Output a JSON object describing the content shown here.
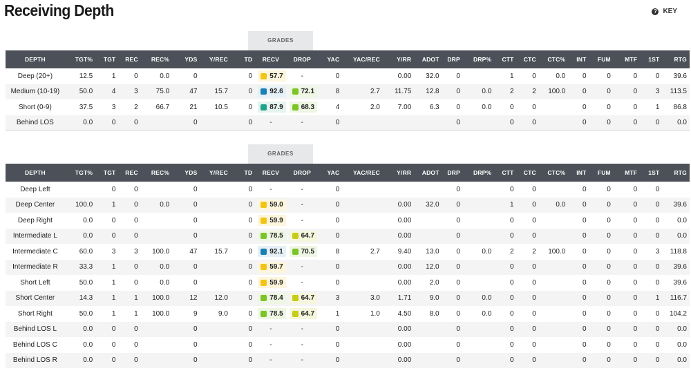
{
  "header": {
    "title": "Receiving Depth",
    "key_label": "KEY",
    "key_icon": "?"
  },
  "grades_label": "GRADES",
  "colors": {
    "elite": "#1a7fb3",
    "high": "#1fa38c",
    "good": "#7cc427",
    "avg": "#c7cc16",
    "low": "#f2c414",
    "bg_elite": "#e6f1f7",
    "bg_high": "#e5f4ef",
    "bg_good": "#eef7e3",
    "bg_avg": "#f5f6dd",
    "bg_low": "#fdf6dc"
  },
  "columns": [
    "DEPTH",
    "TGT%",
    "TGT",
    "REC",
    "REC%",
    "YDS",
    "Y/REC",
    "TD",
    "RECV",
    "DROP",
    "YAC",
    "YAC/REC",
    "Y/RR",
    "ADOT",
    "DRP",
    "DRP%",
    "CTT",
    "CTC",
    "CTC%",
    "INT",
    "FUM",
    "MTF",
    "1ST",
    "RTG"
  ],
  "table1": {
    "rows": [
      {
        "depth": "Deep (20+)",
        "tgt_pct": "12.5",
        "tgt": "1",
        "rec": "0",
        "rec_pct": "0.0",
        "yds": "0",
        "y_rec": "",
        "td": "0",
        "recv": {
          "v": "57.7",
          "tier": "low"
        },
        "drop": {
          "v": "-",
          "tier": ""
        },
        "yac": "0",
        "yac_rec": "",
        "y_rr": "0.00",
        "adot": "32.0",
        "drp": "0",
        "drp_pct": "",
        "ctt": "1",
        "ctc": "0",
        "ctc_pct": "0.0",
        "int": "0",
        "fum": "0",
        "mtf": "0",
        "first": "0",
        "rtg": "39.6"
      },
      {
        "depth": "Medium (10-19)",
        "tgt_pct": "50.0",
        "tgt": "4",
        "rec": "3",
        "rec_pct": "75.0",
        "yds": "47",
        "y_rec": "15.7",
        "td": "0",
        "recv": {
          "v": "92.6",
          "tier": "elite"
        },
        "drop": {
          "v": "72.1",
          "tier": "good"
        },
        "yac": "8",
        "yac_rec": "2.7",
        "y_rr": "11.75",
        "adot": "12.8",
        "drp": "0",
        "drp_pct": "0.0",
        "ctt": "2",
        "ctc": "2",
        "ctc_pct": "100.0",
        "int": "0",
        "fum": "0",
        "mtf": "0",
        "first": "3",
        "rtg": "113.5"
      },
      {
        "depth": "Short (0-9)",
        "tgt_pct": "37.5",
        "tgt": "3",
        "rec": "2",
        "rec_pct": "66.7",
        "yds": "21",
        "y_rec": "10.5",
        "td": "0",
        "recv": {
          "v": "87.9",
          "tier": "high"
        },
        "drop": {
          "v": "68.3",
          "tier": "good"
        },
        "yac": "4",
        "yac_rec": "2.0",
        "y_rr": "7.00",
        "adot": "6.3",
        "drp": "0",
        "drp_pct": "0.0",
        "ctt": "0",
        "ctc": "0",
        "ctc_pct": "",
        "int": "0",
        "fum": "0",
        "mtf": "0",
        "first": "1",
        "rtg": "86.8"
      },
      {
        "depth": "Behind LOS",
        "tgt_pct": "0.0",
        "tgt": "0",
        "rec": "0",
        "rec_pct": "",
        "yds": "0",
        "y_rec": "",
        "td": "0",
        "recv": {
          "v": "-",
          "tier": ""
        },
        "drop": {
          "v": "-",
          "tier": ""
        },
        "yac": "0",
        "yac_rec": "",
        "y_rr": "",
        "adot": "",
        "drp": "0",
        "drp_pct": "",
        "ctt": "0",
        "ctc": "0",
        "ctc_pct": "",
        "int": "0",
        "fum": "0",
        "mtf": "0",
        "first": "0",
        "rtg": "0.0"
      }
    ]
  },
  "table2": {
    "rows": [
      {
        "depth": "Deep Left",
        "tgt_pct": "",
        "tgt": "0",
        "rec": "0",
        "rec_pct": "",
        "yds": "0",
        "y_rec": "",
        "td": "0",
        "recv": {
          "v": "-",
          "tier": ""
        },
        "drop": {
          "v": "-",
          "tier": ""
        },
        "yac": "0",
        "yac_rec": "",
        "y_rr": "",
        "adot": "",
        "drp": "0",
        "drp_pct": "",
        "ctt": "0",
        "ctc": "0",
        "ctc_pct": "",
        "int": "0",
        "fum": "0",
        "mtf": "0",
        "first": "0",
        "rtg": ""
      },
      {
        "depth": "Deep Center",
        "tgt_pct": "100.0",
        "tgt": "1",
        "rec": "0",
        "rec_pct": "0.0",
        "yds": "0",
        "y_rec": "",
        "td": "0",
        "recv": {
          "v": "59.0",
          "tier": "low"
        },
        "drop": {
          "v": "-",
          "tier": ""
        },
        "yac": "0",
        "yac_rec": "",
        "y_rr": "0.00",
        "adot": "32.0",
        "drp": "0",
        "drp_pct": "",
        "ctt": "1",
        "ctc": "0",
        "ctc_pct": "0.0",
        "int": "0",
        "fum": "0",
        "mtf": "0",
        "first": "0",
        "rtg": "39.6"
      },
      {
        "depth": "Deep Right",
        "tgt_pct": "0.0",
        "tgt": "0",
        "rec": "0",
        "rec_pct": "",
        "yds": "0",
        "y_rec": "",
        "td": "0",
        "recv": {
          "v": "59.9",
          "tier": "low"
        },
        "drop": {
          "v": "-",
          "tier": ""
        },
        "yac": "0",
        "yac_rec": "",
        "y_rr": "0.00",
        "adot": "",
        "drp": "0",
        "drp_pct": "",
        "ctt": "0",
        "ctc": "0",
        "ctc_pct": "",
        "int": "0",
        "fum": "0",
        "mtf": "0",
        "first": "0",
        "rtg": "0.0"
      },
      {
        "depth": "Intermediate L",
        "tgt_pct": "0.0",
        "tgt": "0",
        "rec": "0",
        "rec_pct": "",
        "yds": "0",
        "y_rec": "",
        "td": "0",
        "recv": {
          "v": "78.5",
          "tier": "good"
        },
        "drop": {
          "v": "64.7",
          "tier": "avg"
        },
        "yac": "0",
        "yac_rec": "",
        "y_rr": "0.00",
        "adot": "",
        "drp": "0",
        "drp_pct": "",
        "ctt": "0",
        "ctc": "0",
        "ctc_pct": "",
        "int": "0",
        "fum": "0",
        "mtf": "0",
        "first": "0",
        "rtg": "0.0"
      },
      {
        "depth": "Intermediate C",
        "tgt_pct": "60.0",
        "tgt": "3",
        "rec": "3",
        "rec_pct": "100.0",
        "yds": "47",
        "y_rec": "15.7",
        "td": "0",
        "recv": {
          "v": "92.1",
          "tier": "elite"
        },
        "drop": {
          "v": "70.5",
          "tier": "good"
        },
        "yac": "8",
        "yac_rec": "2.7",
        "y_rr": "9.40",
        "adot": "13.0",
        "drp": "0",
        "drp_pct": "0.0",
        "ctt": "2",
        "ctc": "2",
        "ctc_pct": "100.0",
        "int": "0",
        "fum": "0",
        "mtf": "0",
        "first": "3",
        "rtg": "118.8"
      },
      {
        "depth": "Intermediate R",
        "tgt_pct": "33.3",
        "tgt": "1",
        "rec": "0",
        "rec_pct": "0.0",
        "yds": "0",
        "y_rec": "",
        "td": "0",
        "recv": {
          "v": "59.7",
          "tier": "low"
        },
        "drop": {
          "v": "-",
          "tier": ""
        },
        "yac": "0",
        "yac_rec": "",
        "y_rr": "0.00",
        "adot": "12.0",
        "drp": "0",
        "drp_pct": "",
        "ctt": "0",
        "ctc": "0",
        "ctc_pct": "",
        "int": "0",
        "fum": "0",
        "mtf": "0",
        "first": "0",
        "rtg": "39.6"
      },
      {
        "depth": "Short Left",
        "tgt_pct": "50.0",
        "tgt": "1",
        "rec": "0",
        "rec_pct": "0.0",
        "yds": "0",
        "y_rec": "",
        "td": "0",
        "recv": {
          "v": "59.9",
          "tier": "low"
        },
        "drop": {
          "v": "-",
          "tier": ""
        },
        "yac": "0",
        "yac_rec": "",
        "y_rr": "0.00",
        "adot": "2.0",
        "drp": "0",
        "drp_pct": "",
        "ctt": "0",
        "ctc": "0",
        "ctc_pct": "",
        "int": "0",
        "fum": "0",
        "mtf": "0",
        "first": "0",
        "rtg": "39.6"
      },
      {
        "depth": "Short Center",
        "tgt_pct": "14.3",
        "tgt": "1",
        "rec": "1",
        "rec_pct": "100.0",
        "yds": "12",
        "y_rec": "12.0",
        "td": "0",
        "recv": {
          "v": "78.4",
          "tier": "good"
        },
        "drop": {
          "v": "64.7",
          "tier": "avg"
        },
        "yac": "3",
        "yac_rec": "3.0",
        "y_rr": "1.71",
        "adot": "9.0",
        "drp": "0",
        "drp_pct": "0.0",
        "ctt": "0",
        "ctc": "0",
        "ctc_pct": "",
        "int": "0",
        "fum": "0",
        "mtf": "0",
        "first": "1",
        "rtg": "116.7"
      },
      {
        "depth": "Short Right",
        "tgt_pct": "50.0",
        "tgt": "1",
        "rec": "1",
        "rec_pct": "100.0",
        "yds": "9",
        "y_rec": "9.0",
        "td": "0",
        "recv": {
          "v": "78.5",
          "tier": "good"
        },
        "drop": {
          "v": "64.7",
          "tier": "avg"
        },
        "yac": "1",
        "yac_rec": "1.0",
        "y_rr": "4.50",
        "adot": "8.0",
        "drp": "0",
        "drp_pct": "0.0",
        "ctt": "0",
        "ctc": "0",
        "ctc_pct": "",
        "int": "0",
        "fum": "0",
        "mtf": "0",
        "first": "0",
        "rtg": "104.2"
      },
      {
        "depth": "Behind LOS L",
        "tgt_pct": "0.0",
        "tgt": "0",
        "rec": "0",
        "rec_pct": "",
        "yds": "0",
        "y_rec": "",
        "td": "0",
        "recv": {
          "v": "-",
          "tier": ""
        },
        "drop": {
          "v": "-",
          "tier": ""
        },
        "yac": "0",
        "yac_rec": "",
        "y_rr": "0.00",
        "adot": "",
        "drp": "0",
        "drp_pct": "",
        "ctt": "0",
        "ctc": "0",
        "ctc_pct": "",
        "int": "0",
        "fum": "0",
        "mtf": "0",
        "first": "0",
        "rtg": "0.0"
      },
      {
        "depth": "Behind LOS C",
        "tgt_pct": "0.0",
        "tgt": "0",
        "rec": "0",
        "rec_pct": "",
        "yds": "0",
        "y_rec": "",
        "td": "0",
        "recv": {
          "v": "-",
          "tier": ""
        },
        "drop": {
          "v": "-",
          "tier": ""
        },
        "yac": "0",
        "yac_rec": "",
        "y_rr": "0.00",
        "adot": "",
        "drp": "0",
        "drp_pct": "",
        "ctt": "0",
        "ctc": "0",
        "ctc_pct": "",
        "int": "0",
        "fum": "0",
        "mtf": "0",
        "first": "0",
        "rtg": "0.0"
      },
      {
        "depth": "Behind LOS R",
        "tgt_pct": "0.0",
        "tgt": "0",
        "rec": "0",
        "rec_pct": "",
        "yds": "0",
        "y_rec": "",
        "td": "0",
        "recv": {
          "v": "-",
          "tier": ""
        },
        "drop": {
          "v": "-",
          "tier": ""
        },
        "yac": "0",
        "yac_rec": "",
        "y_rr": "0.00",
        "adot": "",
        "drp": "0",
        "drp_pct": "",
        "ctt": "0",
        "ctc": "0",
        "ctc_pct": "",
        "int": "0",
        "fum": "0",
        "mtf": "0",
        "first": "0",
        "rtg": "0.0"
      }
    ]
  }
}
